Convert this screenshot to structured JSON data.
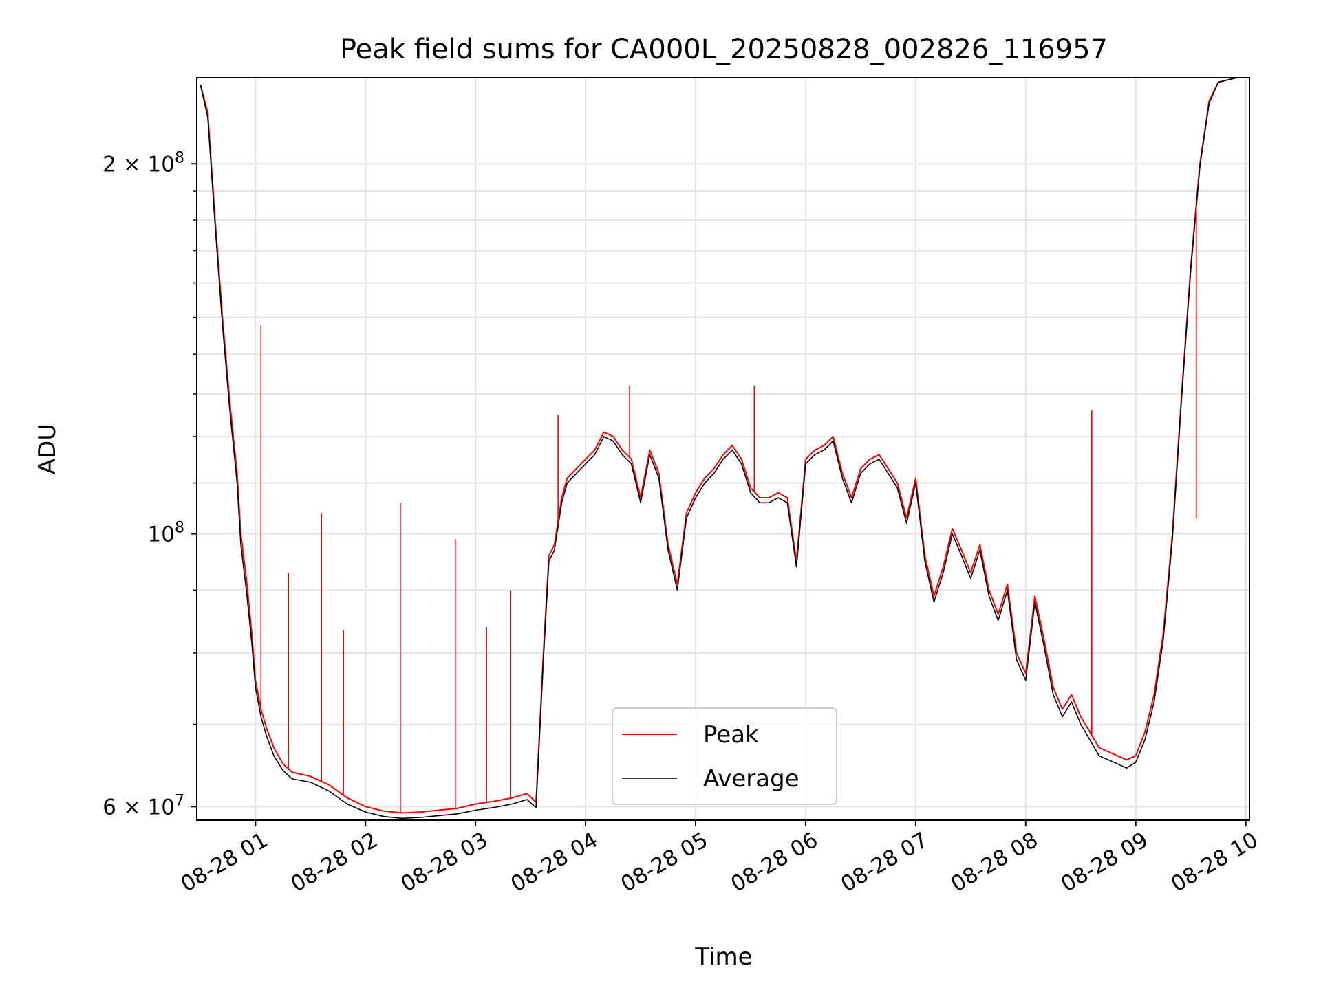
{
  "chart_data": {
    "type": "line",
    "title": "Peak field sums for CA000L_20250828_002826_116957",
    "xlabel": "Time",
    "ylabel": "ADU",
    "x_axis": "time",
    "y_scale": "log",
    "xlim": [
      "2025-08-28 00:28",
      "2025-08-28 10:02"
    ],
    "ylim": [
      58500000,
      235000000
    ],
    "xticks": [
      "08-28 01",
      "08-28 02",
      "08-28 03",
      "08-28 04",
      "08-28 05",
      "08-28 06",
      "08-28 07",
      "08-28 08",
      "08-28 09",
      "08-28 10"
    ],
    "yticks": [
      {
        "value": 60000000,
        "label": "6 × 10",
        "exp": "7"
      },
      {
        "value": 100000000,
        "label": "10",
        "exp": "8"
      },
      {
        "value": 200000000,
        "label": "2 × 10",
        "exp": "8"
      }
    ],
    "grid": true,
    "legend_position": "bottom-center",
    "series": [
      {
        "name": "Peak",
        "color": "#ff0000",
        "x": [
          "00:30",
          "00:34",
          "00:38",
          "00:42",
          "00:46",
          "00:50",
          "00:52",
          "00:55",
          "00:58",
          "01:00",
          "01:03",
          "01:06",
          "01:10",
          "01:15",
          "01:20",
          "01:30",
          "01:40",
          "01:50",
          "02:00",
          "02:10",
          "02:20",
          "02:30",
          "02:40",
          "02:50",
          "03:00",
          "03:10",
          "03:20",
          "03:28",
          "03:33",
          "03:37",
          "03:40",
          "03:43",
          "03:47",
          "03:50",
          "03:55",
          "04:00",
          "04:05",
          "04:10",
          "04:15",
          "04:20",
          "04:25",
          "04:30",
          "04:35",
          "04:40",
          "04:45",
          "04:50",
          "04:55",
          "05:00",
          "05:05",
          "05:10",
          "05:15",
          "05:20",
          "05:25",
          "05:30",
          "05:35",
          "05:40",
          "05:45",
          "05:50",
          "05:55",
          "06:00",
          "06:05",
          "06:10",
          "06:15",
          "06:20",
          "06:25",
          "06:30",
          "06:35",
          "06:40",
          "06:45",
          "06:50",
          "06:55",
          "07:00",
          "07:05",
          "07:10",
          "07:15",
          "07:20",
          "07:25",
          "07:30",
          "07:35",
          "07:40",
          "07:45",
          "07:50",
          "07:55",
          "08:00",
          "08:05",
          "08:10",
          "08:15",
          "08:20",
          "08:25",
          "08:30",
          "08:35",
          "08:40",
          "08:45",
          "08:50",
          "08:55",
          "09:00",
          "09:05",
          "09:10",
          "09:15",
          "09:20",
          "09:25",
          "09:30",
          "09:35",
          "09:40",
          "09:45",
          "09:50",
          "09:55",
          "09:58"
        ],
        "y": [
          232000000,
          220000000,
          180000000,
          150000000,
          128000000,
          112000000,
          100000000,
          92000000,
          83000000,
          76000000,
          72000000,
          69500000,
          67000000,
          65000000,
          64000000,
          63500000,
          62500000,
          61000000,
          60000000,
          59500000,
          59300000,
          59400000,
          59600000,
          59800000,
          60300000,
          60600000,
          61000000,
          61500000,
          60500000,
          80000000,
          96000000,
          98000000,
          107000000,
          111000000,
          113000000,
          115000000,
          117000000,
          121000000,
          120000000,
          117000000,
          115000000,
          107000000,
          117000000,
          112000000,
          98000000,
          91000000,
          104000000,
          108000000,
          111000000,
          113000000,
          116000000,
          118000000,
          115000000,
          109000000,
          107000000,
          107000000,
          108000000,
          107000000,
          95000000,
          115000000,
          117000000,
          118000000,
          120000000,
          112000000,
          107000000,
          113000000,
          115000000,
          116000000,
          113000000,
          110000000,
          103000000,
          111000000,
          96000000,
          89000000,
          94000000,
          101000000,
          97000000,
          93000000,
          98000000,
          90000000,
          86000000,
          91000000,
          80000000,
          77000000,
          89000000,
          82000000,
          75000000,
          72000000,
          74000000,
          71000000,
          69000000,
          67000000,
          66500000,
          66000000,
          65500000,
          66000000,
          69000000,
          74000000,
          83000000,
          100000000,
          130000000,
          165000000,
          200000000,
          225000000,
          233000000,
          234000000,
          235000000,
          235000000
        ]
      },
      {
        "name": "Average",
        "color": "#000000",
        "x": [
          "00:30",
          "00:34",
          "00:38",
          "00:42",
          "00:46",
          "00:50",
          "00:52",
          "00:55",
          "00:58",
          "01:00",
          "01:03",
          "01:06",
          "01:10",
          "01:15",
          "01:20",
          "01:30",
          "01:40",
          "01:50",
          "02:00",
          "02:10",
          "02:20",
          "02:30",
          "02:40",
          "02:50",
          "03:00",
          "03:10",
          "03:20",
          "03:28",
          "03:33",
          "03:37",
          "03:40",
          "03:43",
          "03:47",
          "03:50",
          "03:55",
          "04:00",
          "04:05",
          "04:10",
          "04:15",
          "04:20",
          "04:25",
          "04:30",
          "04:35",
          "04:40",
          "04:45",
          "04:50",
          "04:55",
          "05:00",
          "05:05",
          "05:10",
          "05:15",
          "05:20",
          "05:25",
          "05:30",
          "05:35",
          "05:40",
          "05:45",
          "05:50",
          "05:55",
          "06:00",
          "06:05",
          "06:10",
          "06:15",
          "06:20",
          "06:25",
          "06:30",
          "06:35",
          "06:40",
          "06:45",
          "06:50",
          "06:55",
          "07:00",
          "07:05",
          "07:10",
          "07:15",
          "07:20",
          "07:25",
          "07:30",
          "07:35",
          "07:40",
          "07:45",
          "07:50",
          "07:55",
          "08:00",
          "08:05",
          "08:10",
          "08:15",
          "08:20",
          "08:25",
          "08:30",
          "08:35",
          "08:40",
          "08:45",
          "08:50",
          "08:55",
          "09:00",
          "09:05",
          "09:10",
          "09:15",
          "09:20",
          "09:25",
          "09:30",
          "09:35",
          "09:40",
          "09:45",
          "09:50",
          "09:55",
          "09:58"
        ],
        "y": [
          232000000,
          218000000,
          178000000,
          148000000,
          126000000,
          110000000,
          98000000,
          90000000,
          81500000,
          75000000,
          71000000,
          68500000,
          66000000,
          64200000,
          63200000,
          62800000,
          61800000,
          60300000,
          59400000,
          58900000,
          58700000,
          58800000,
          59000000,
          59200000,
          59600000,
          59900000,
          60300000,
          60800000,
          59900000,
          79000000,
          95000000,
          97000000,
          106000000,
          110000000,
          112000000,
          114000000,
          116000000,
          120000000,
          119000000,
          116000000,
          114000000,
          106000000,
          116000000,
          111000000,
          97000000,
          90000000,
          103000000,
          107000000,
          110000000,
          112000000,
          115000000,
          117000000,
          114000000,
          108000000,
          106000000,
          106000000,
          107000000,
          106000000,
          94000000,
          114000000,
          116000000,
          117000000,
          119000000,
          111000000,
          106000000,
          112000000,
          114000000,
          115000000,
          112000000,
          109000000,
          102000000,
          110000000,
          95000000,
          88000000,
          93000000,
          100000000,
          96000000,
          92000000,
          97000000,
          89000000,
          85000000,
          90000000,
          79000000,
          76000000,
          88000000,
          81000000,
          74000000,
          71000000,
          73000000,
          70000000,
          68000000,
          66000000,
          65500000,
          65000000,
          64500000,
          65200000,
          68000000,
          73000000,
          82000000,
          99000000,
          129000000,
          164000000,
          199000000,
          224000000,
          233000000,
          234000000,
          235000000,
          235000000
        ]
      }
    ],
    "spikes": [
      {
        "x": "01:03",
        "y": 148000000
      },
      {
        "x": "01:18",
        "y": 93000000
      },
      {
        "x": "01:36",
        "y": 104000000
      },
      {
        "x": "01:48",
        "y": 83500000
      },
      {
        "x": "02:19",
        "y": 106000000
      },
      {
        "x": "02:49",
        "y": 99000000
      },
      {
        "x": "03:06",
        "y": 84000000
      },
      {
        "x": "03:19",
        "y": 90000000
      },
      {
        "x": "03:45",
        "y": 125000000
      },
      {
        "x": "04:24",
        "y": 132000000
      },
      {
        "x": "05:32",
        "y": 132000000
      },
      {
        "x": "08:36",
        "y": 126000000
      },
      {
        "x": "09:16",
        "y": 86000000
      },
      {
        "x": "09:33",
        "y": 103000000
      }
    ]
  }
}
